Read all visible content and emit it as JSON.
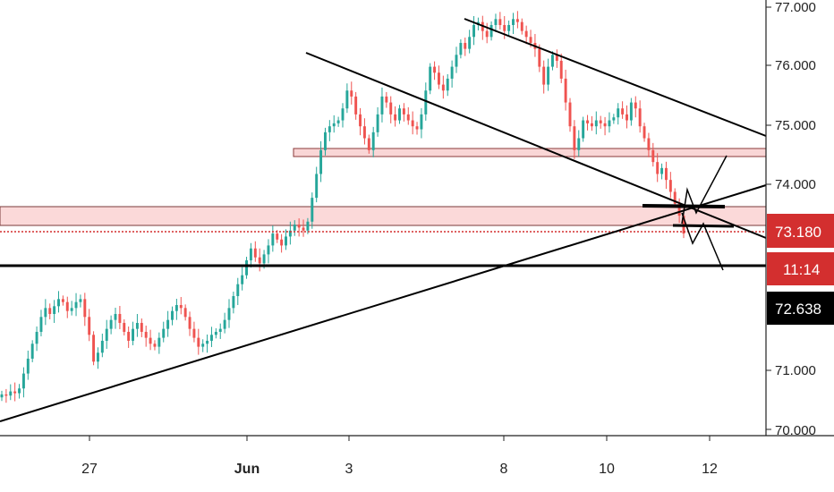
{
  "chart_data": {
    "type": "candlestick",
    "y_axis": {
      "range": [
        69.95,
        77.1
      ],
      "ticks": [
        "77.000",
        "76.000",
        "75.000",
        "74.000",
        "71.000",
        "70.000"
      ],
      "tick_values": [
        77,
        76,
        75,
        74,
        71,
        70
      ]
    },
    "x_axis": {
      "ticks": [
        "27",
        "Jun",
        "3",
        "8",
        "10",
        "12"
      ],
      "tick_bold": [
        false,
        true,
        false,
        false,
        false,
        false
      ]
    },
    "price_badges": [
      {
        "label": "73.180",
        "value": 73.18,
        "color": "#d32f2f"
      },
      {
        "label": "11:14",
        "value": 72.86,
        "color": "#d32f2f"
      },
      {
        "label": "72.638",
        "value": 72.638,
        "color": "#000000"
      }
    ],
    "candles_close": [
      70.5,
      70.48,
      70.55,
      70.52,
      70.6,
      70.85,
      71.1,
      71.35,
      71.55,
      71.8,
      71.95,
      71.85,
      71.98,
      72.1,
      72.05,
      71.9,
      71.95,
      72.05,
      72.1,
      71.8,
      71.5,
      71.05,
      71.2,
      71.4,
      71.6,
      71.75,
      71.85,
      71.7,
      71.55,
      71.4,
      71.6,
      71.7,
      71.55,
      71.45,
      71.35,
      71.3,
      71.45,
      71.6,
      71.75,
      71.9,
      72.0,
      71.95,
      71.8,
      71.6,
      71.45,
      71.3,
      71.35,
      71.4,
      71.5,
      71.55,
      71.6,
      71.75,
      71.95,
      72.15,
      72.35,
      72.5,
      72.75,
      72.95,
      72.8,
      72.7,
      72.85,
      73.0,
      73.2,
      73.1,
      73.0,
      73.15,
      73.25,
      73.35,
      73.3,
      73.25,
      73.4,
      73.8,
      74.2,
      74.6,
      74.9,
      75.0,
      75.05,
      75.1,
      75.3,
      75.6,
      75.5,
      75.2,
      75.0,
      74.8,
      74.6,
      74.9,
      75.2,
      75.5,
      75.4,
      75.2,
      75.1,
      75.3,
      75.2,
      75.1,
      75.0,
      74.95,
      75.2,
      75.6,
      76.0,
      75.9,
      75.7,
      75.6,
      75.8,
      76.0,
      76.2,
      76.4,
      76.3,
      76.5,
      76.7,
      76.75,
      76.6,
      76.5,
      76.7,
      76.8,
      76.7,
      76.6,
      76.7,
      76.8,
      76.75,
      76.6,
      76.5,
      76.4,
      76.3,
      76.0,
      75.7,
      76.0,
      76.2,
      76.1,
      75.8,
      75.4,
      75.0,
      74.6,
      74.8,
      75.1,
      75.05,
      75.0,
      75.1,
      75.05,
      75.0,
      75.1,
      75.15,
      75.3,
      75.2,
      75.1,
      75.4,
      75.3,
      75.0,
      74.8,
      74.6,
      74.4,
      74.2,
      74.3,
      74.1,
      73.9,
      73.7,
      73.5,
      73.2
    ],
    "trendlines": [
      {
        "name": "ascending-support",
        "from": [
          0,
          69.9
        ],
        "to": [
          160,
          73.95
        ]
      },
      {
        "name": "upper-channel",
        "from": [
          90,
          76.8
        ],
        "to": [
          160,
          74.9
        ]
      },
      {
        "name": "lower-channel",
        "from": [
          60,
          76.15
        ],
        "to": [
          160,
          73.1
        ]
      }
    ],
    "horizontal_lines": [
      {
        "name": "support-line",
        "value": 72.58
      },
      {
        "name": "current-price-dotted",
        "value": 73.18
      }
    ],
    "zones": [
      {
        "name": "resistance-zone-upper",
        "top": 74.56,
        "bottom": 74.44
      },
      {
        "name": "resistance-zone-lower",
        "top": 73.56,
        "bottom": 73.26
      }
    ]
  }
}
